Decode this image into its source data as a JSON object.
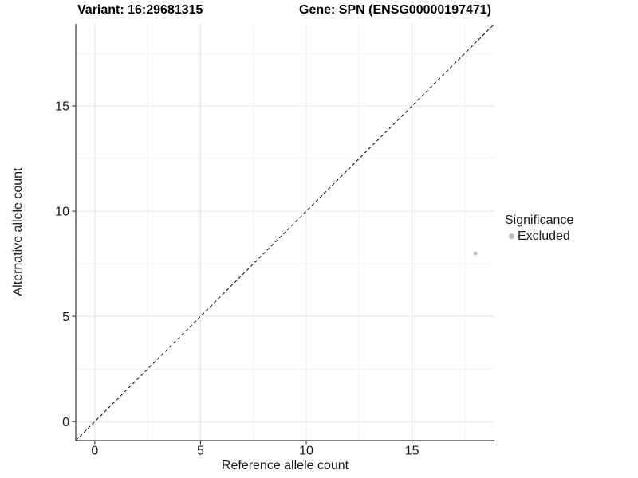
{
  "header": {
    "variant_title": "Variant: 16:29681315",
    "gene_title": "Gene: SPN (ENSG00000197471)"
  },
  "chart_data": {
    "type": "scatter",
    "xlabel": "Reference allele count",
    "ylabel": "Alternative allele count",
    "xlim": [
      -0.9,
      18.9
    ],
    "ylim": [
      -0.9,
      18.9
    ],
    "x_major_ticks": [
      0,
      5,
      10,
      15
    ],
    "y_major_ticks": [
      0,
      5,
      10,
      15
    ],
    "x_minor_ticks": [
      2.5,
      7.5,
      12.5,
      17.5
    ],
    "y_minor_ticks": [
      2.5,
      7.5,
      12.5,
      17.5
    ],
    "grid": "major+minor",
    "identity_line": {
      "slope": 1,
      "intercept": 0,
      "style": "dashed",
      "color": "#000000"
    },
    "series": [
      {
        "name": "Excluded",
        "color": "#bebebe",
        "points": [
          [
            18,
            8
          ]
        ]
      }
    ],
    "legend": {
      "title": "Significance",
      "position": "right",
      "items": [
        {
          "label": "Excluded",
          "color": "#bebebe"
        }
      ]
    }
  },
  "colors": {
    "background": "#ffffff",
    "axis_line": "#333333",
    "tick_label": "#1a1a1a",
    "grid_major": "#e4e4e4",
    "grid_minor": "#f2f2f2"
  }
}
